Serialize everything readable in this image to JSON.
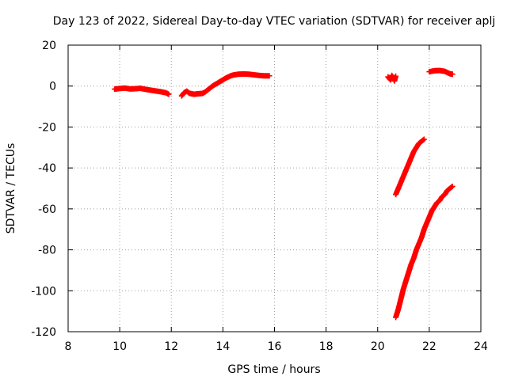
{
  "chart_data": {
    "type": "scatter",
    "title": "Day 123 of 2022, Sidereal Day-to-day VTEC variation (SDTVAR) for receiver aplj",
    "xlabel": "GPS time / hours",
    "ylabel": "SDTVAR / TECUs",
    "xlim": [
      8,
      24
    ],
    "ylim": [
      -120,
      20
    ],
    "xticks": [
      "8",
      "10",
      "12",
      "14",
      "16",
      "18",
      "20",
      "22",
      "24"
    ],
    "yticks": [
      "20",
      "0",
      "-20",
      "-40",
      "-60",
      "-80",
      "-100",
      "-120"
    ],
    "grid": true,
    "marker": "plus",
    "color": "#ff0000",
    "segments": [
      [
        [
          9.8,
          -1.5
        ],
        [
          10.0,
          -1.2
        ],
        [
          10.2,
          -1.0
        ],
        [
          10.4,
          -1.4
        ],
        [
          10.6,
          -1.3
        ],
        [
          10.8,
          -1.1
        ],
        [
          11.0,
          -1.6
        ],
        [
          11.2,
          -2.0
        ],
        [
          11.4,
          -2.4
        ],
        [
          11.6,
          -2.8
        ],
        [
          11.8,
          -3.3
        ],
        [
          11.9,
          -4.0
        ]
      ],
      [
        [
          12.4,
          -4.8
        ],
        [
          12.5,
          -3.2
        ],
        [
          12.6,
          -2.5
        ],
        [
          12.7,
          -3.5
        ],
        [
          12.8,
          -3.8
        ],
        [
          12.9,
          -4.0
        ],
        [
          13.0,
          -3.8
        ],
        [
          13.2,
          -3.6
        ],
        [
          13.3,
          -3.0
        ],
        [
          13.4,
          -2.0
        ],
        [
          13.5,
          -1.0
        ],
        [
          13.6,
          0.0
        ],
        [
          13.7,
          0.8
        ],
        [
          13.8,
          1.5
        ],
        [
          13.9,
          2.3
        ],
        [
          14.0,
          3.0
        ],
        [
          14.1,
          3.8
        ],
        [
          14.2,
          4.4
        ],
        [
          14.3,
          5.0
        ],
        [
          14.4,
          5.4
        ],
        [
          14.6,
          5.8
        ],
        [
          14.8,
          5.9
        ],
        [
          15.0,
          5.8
        ],
        [
          15.2,
          5.5
        ],
        [
          15.4,
          5.2
        ],
        [
          15.6,
          5.0
        ],
        [
          15.8,
          5.0
        ]
      ],
      [
        [
          20.4,
          4.5
        ],
        [
          20.5,
          3.0
        ],
        [
          20.55,
          5.2
        ],
        [
          20.6,
          4.2
        ],
        [
          20.65,
          2.5
        ],
        [
          20.7,
          4.8
        ]
      ],
      [
        [
          20.7,
          -53
        ],
        [
          20.8,
          -50
        ],
        [
          20.9,
          -47
        ],
        [
          21.0,
          -44
        ],
        [
          21.1,
          -41
        ],
        [
          21.2,
          -38
        ],
        [
          21.3,
          -35
        ],
        [
          21.4,
          -32
        ],
        [
          21.5,
          -30
        ],
        [
          21.6,
          -28
        ],
        [
          21.7,
          -27
        ],
        [
          21.8,
          -26
        ]
      ],
      [
        [
          22.0,
          7.0
        ],
        [
          22.2,
          7.5
        ],
        [
          22.4,
          7.6
        ],
        [
          22.6,
          7.2
        ],
        [
          22.8,
          6.0
        ],
        [
          22.9,
          5.8
        ]
      ],
      [
        [
          20.7,
          -113
        ],
        [
          20.8,
          -109
        ],
        [
          20.9,
          -104
        ],
        [
          21.0,
          -99
        ],
        [
          21.1,
          -95
        ],
        [
          21.2,
          -91
        ],
        [
          21.3,
          -87
        ],
        [
          21.4,
          -84
        ],
        [
          21.5,
          -80
        ],
        [
          21.6,
          -77
        ],
        [
          21.7,
          -74
        ],
        [
          21.8,
          -70
        ],
        [
          21.9,
          -67
        ],
        [
          22.0,
          -64
        ],
        [
          22.1,
          -61
        ],
        [
          22.2,
          -59
        ],
        [
          22.3,
          -57
        ],
        [
          22.4,
          -56
        ],
        [
          22.5,
          -54
        ],
        [
          22.6,
          -53
        ],
        [
          22.7,
          -51
        ],
        [
          22.8,
          -50
        ],
        [
          22.9,
          -49
        ]
      ]
    ]
  }
}
